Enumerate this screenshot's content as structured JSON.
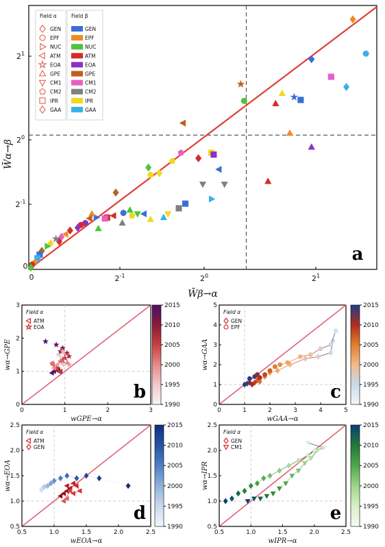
{
  "chart_data": [
    {
      "panel": "a",
      "type": "scatter",
      "xlabel": "W̄β→α",
      "ylabel": "W̄α→β",
      "x_ticks": [
        "2-1",
        "20",
        "21"
      ],
      "y_ticks": [
        "2-1",
        "20",
        "21"
      ],
      "xlim": [
        0,
        3.2
      ],
      "ylim": [
        0,
        2.85
      ],
      "legend_alpha": {
        "title": "Field α",
        "items": [
          "GEN",
          "EPF",
          "NUC",
          "ATM",
          "EOA",
          "GPE",
          "CM1",
          "CM2",
          "IPR",
          "GAA"
        ]
      },
      "legend_beta": {
        "title": "Field β",
        "items": [
          {
            "name": "GEN",
            "color": "#3a6fd8"
          },
          {
            "name": "EPF",
            "color": "#f08a24"
          },
          {
            "name": "NUC",
            "color": "#4cc43e"
          },
          {
            "name": "ATM",
            "color": "#d62b2b"
          },
          {
            "name": "EOA",
            "color": "#8b32c4"
          },
          {
            "name": "GPE",
            "color": "#c0601c"
          },
          {
            "name": "CM1",
            "color": "#e85fc4"
          },
          {
            "name": "CM2",
            "color": "#808080"
          },
          {
            "name": "IPR",
            "color": "#f0d820"
          },
          {
            "name": "GAA",
            "color": "#3ab0e8"
          }
        ]
      },
      "points": [
        {
          "x": 2.98,
          "y": 2.7,
          "c": "#f08a24",
          "m": "diamond"
        },
        {
          "x": 3.1,
          "y": 2.33,
          "c": "#3ab0e8",
          "m": "circle"
        },
        {
          "x": 2.6,
          "y": 2.27,
          "c": "#3a6fd8",
          "m": "diamond"
        },
        {
          "x": 2.78,
          "y": 2.08,
          "c": "#e85fc4",
          "m": "square"
        },
        {
          "x": 2.92,
          "y": 1.97,
          "c": "#3ab0e8",
          "m": "diamond"
        },
        {
          "x": 1.95,
          "y": 2.0,
          "c": "#c0601c",
          "m": "star"
        },
        {
          "x": 2.5,
          "y": 1.83,
          "c": "#3a6fd8",
          "m": "square"
        },
        {
          "x": 2.44,
          "y": 1.86,
          "c": "#3a6fd8",
          "m": "star"
        },
        {
          "x": 2.33,
          "y": 1.9,
          "c": "#f0d820",
          "m": "triangle"
        },
        {
          "x": 2.27,
          "y": 1.79,
          "c": "#d62b2b",
          "m": "triangle"
        },
        {
          "x": 1.98,
          "y": 1.82,
          "c": "#4cc43e",
          "m": "circle"
        },
        {
          "x": 1.42,
          "y": 1.58,
          "c": "#c0601c",
          "m": "tri-left"
        },
        {
          "x": 2.4,
          "y": 1.47,
          "c": "#f08a24",
          "m": "triangle"
        },
        {
          "x": 2.6,
          "y": 1.32,
          "c": "#8b32c4",
          "m": "triangle"
        },
        {
          "x": 1.75,
          "y": 1.08,
          "c": "#3a6fd8",
          "m": "tri-left"
        },
        {
          "x": 2.2,
          "y": 0.95,
          "c": "#d62b2b",
          "m": "triangle"
        },
        {
          "x": 1.56,
          "y": 1.2,
          "c": "#d62b2b",
          "m": "diamond"
        },
        {
          "x": 1.68,
          "y": 1.26,
          "c": "#f0d820",
          "m": "square"
        },
        {
          "x": 1.7,
          "y": 1.24,
          "c": "#8b32c4",
          "m": "square"
        },
        {
          "x": 1.4,
          "y": 1.26,
          "c": "#e85fc4",
          "m": "pentagon"
        },
        {
          "x": 1.32,
          "y": 1.17,
          "c": "#f0d820",
          "m": "pentagon"
        },
        {
          "x": 1.1,
          "y": 1.1,
          "c": "#4cc43e",
          "m": "diamond"
        },
        {
          "x": 1.12,
          "y": 1.02,
          "c": "#f0d820",
          "m": "circle"
        },
        {
          "x": 1.2,
          "y": 1.04,
          "c": "#f0d820",
          "m": "diamond"
        },
        {
          "x": 0.8,
          "y": 0.83,
          "c": "#c0601c",
          "m": "diamond"
        },
        {
          "x": 1.6,
          "y": 0.92,
          "c": "#808080",
          "m": "tri-down"
        },
        {
          "x": 1.8,
          "y": 0.92,
          "c": "#808080",
          "m": "tri-down"
        },
        {
          "x": 1.68,
          "y": 0.76,
          "c": "#3ab0e8",
          "m": "tri-right"
        },
        {
          "x": 1.44,
          "y": 0.71,
          "c": "#3a6fd8",
          "m": "square"
        },
        {
          "x": 1.38,
          "y": 0.66,
          "c": "#808080",
          "m": "square"
        },
        {
          "x": 1.28,
          "y": 0.6,
          "c": "#f0d820",
          "m": "tri-down"
        },
        {
          "x": 1.06,
          "y": 0.6,
          "c": "#3a6fd8",
          "m": "tri-left"
        },
        {
          "x": 0.95,
          "y": 0.58,
          "c": "#f0d820",
          "m": "pentagon"
        },
        {
          "x": 0.93,
          "y": 0.64,
          "c": "#4cc43e",
          "m": "triangle"
        },
        {
          "x": 0.87,
          "y": 0.61,
          "c": "#3a6fd8",
          "m": "circle"
        },
        {
          "x": 0.78,
          "y": 0.58,
          "c": "#d62b2b",
          "m": "tri-left"
        },
        {
          "x": 0.72,
          "y": 0.56,
          "c": "#d62b2b",
          "m": "square"
        },
        {
          "x": 0.7,
          "y": 0.55,
          "c": "#e85fc4",
          "m": "square"
        },
        {
          "x": 0.62,
          "y": 0.56,
          "c": "#3a6fd8",
          "m": "tri-right"
        },
        {
          "x": 0.58,
          "y": 0.6,
          "c": "#f08a24",
          "m": "triangle"
        },
        {
          "x": 0.56,
          "y": 0.55,
          "c": "#c0601c",
          "m": "tri-left"
        },
        {
          "x": 0.52,
          "y": 0.5,
          "c": "#8b32c4",
          "m": "circle"
        },
        {
          "x": 0.48,
          "y": 0.48,
          "c": "#d62b2b",
          "m": "circle"
        },
        {
          "x": 0.45,
          "y": 0.45,
          "c": "#8b32c4",
          "m": "diamond"
        },
        {
          "x": 0.38,
          "y": 0.42,
          "c": "#d62b2b",
          "m": "diamond"
        },
        {
          "x": 0.34,
          "y": 0.38,
          "c": "#f08a24",
          "m": "tri-left"
        },
        {
          "x": 0.3,
          "y": 0.35,
          "c": "#e85fc4",
          "m": "diamond"
        },
        {
          "x": 0.28,
          "y": 0.3,
          "c": "#d62b2b",
          "m": "diamond"
        },
        {
          "x": 0.25,
          "y": 0.33,
          "c": "#808080",
          "m": "star"
        },
        {
          "x": 0.2,
          "y": 0.28,
          "c": "#f0d820",
          "m": "diamond"
        },
        {
          "x": 0.17,
          "y": 0.25,
          "c": "#4cc43e",
          "m": "tri-right"
        },
        {
          "x": 0.12,
          "y": 0.2,
          "c": "#c0601c",
          "m": "diamond"
        },
        {
          "x": 0.1,
          "y": 0.16,
          "c": "#3a6fd8",
          "m": "square"
        },
        {
          "x": 0.08,
          "y": 0.12,
          "c": "#3ab0e8",
          "m": "square"
        },
        {
          "x": 0.05,
          "y": 0.08,
          "c": "#f08a24",
          "m": "tri-left"
        },
        {
          "x": 0.03,
          "y": 0.05,
          "c": "#d62b2b",
          "m": "circle"
        },
        {
          "x": 0.02,
          "y": 0.02,
          "c": "#4cc43e",
          "m": "diamond"
        },
        {
          "x": 1.0,
          "y": 0.6,
          "c": "#4cc43e",
          "m": "tri-down"
        },
        {
          "x": 1.12,
          "y": 0.54,
          "c": "#f0d820",
          "m": "triangle"
        },
        {
          "x": 0.64,
          "y": 0.44,
          "c": "#4cc43e",
          "m": "triangle"
        },
        {
          "x": 0.86,
          "y": 0.5,
          "c": "#808080",
          "m": "triangle"
        },
        {
          "x": 1.24,
          "y": 0.56,
          "c": "#3ab0e8",
          "m": "triangle"
        }
      ]
    },
    {
      "panel": "b",
      "type": "scatter",
      "xlabel": "wGPE→α",
      "ylabel": "wα→GPE",
      "xlim": [
        0,
        3
      ],
      "ylim": [
        0,
        3
      ],
      "x_ticks": [
        "0",
        "1",
        "2",
        "3"
      ],
      "y_ticks": [
        "0",
        "1",
        "2",
        "3"
      ],
      "legend_title": "Field α",
      "legend": [
        "ATM",
        "EOA"
      ],
      "colorbar": {
        "min": 1990,
        "max": 2015,
        "ticks": [
          "2015",
          "2010",
          "2005",
          "2000",
          "1995",
          "1990"
        ]
      }
    },
    {
      "panel": "c",
      "type": "scatter",
      "xlabel": "wGAA→α",
      "ylabel": "wα→GAA",
      "xlim": [
        0,
        5
      ],
      "ylim": [
        0,
        5
      ],
      "x_ticks": [
        "0",
        "1",
        "2",
        "3",
        "4",
        "5"
      ],
      "y_ticks": [
        "0",
        "1",
        "2",
        "3",
        "4",
        "5"
      ],
      "legend_title": "Field α",
      "legend": [
        "GEN",
        "EPF"
      ],
      "colorbar": {
        "min": 1990,
        "max": 2015,
        "ticks": [
          "2015",
          "2010",
          "2005",
          "2000",
          "1995",
          "1990"
        ]
      }
    },
    {
      "panel": "d",
      "type": "scatter",
      "xlabel": "wEOA→α",
      "ylabel": "wα→EOA",
      "xlim": [
        0.5,
        2.5
      ],
      "ylim": [
        0.5,
        2.5
      ],
      "x_ticks": [
        "0.5",
        "1.0",
        "1.5",
        "2.0",
        "2.5"
      ],
      "y_ticks": [
        "0.5",
        "1.0",
        "1.5",
        "2.0",
        "2.5"
      ],
      "legend_title": "Field α",
      "legend": [
        "ATM",
        "GEN"
      ],
      "colorbar": {
        "min": 1990,
        "max": 2015,
        "ticks": [
          "2015",
          "2010",
          "2005",
          "2000",
          "1995",
          "1990"
        ]
      }
    },
    {
      "panel": "e",
      "type": "scatter",
      "xlabel": "wIPR→α",
      "ylabel": "wα→IPR",
      "xlim": [
        0.5,
        2.5
      ],
      "ylim": [
        0.5,
        2.5
      ],
      "x_ticks": [
        "0.5",
        "1.0",
        "1.5",
        "2.0",
        "2.5"
      ],
      "y_ticks": [
        "0.5",
        "1.0",
        "1.5",
        "2.0",
        "2.5"
      ],
      "legend_title": "Field α",
      "legend": [
        "GEN",
        "CM1"
      ],
      "colorbar": {
        "min": 1990,
        "max": 2015,
        "ticks": [
          "2015",
          "2010",
          "2005",
          "2000",
          "1995",
          "1990"
        ]
      }
    }
  ],
  "panel_labels": [
    "a",
    "b",
    "c",
    "d",
    "e"
  ]
}
